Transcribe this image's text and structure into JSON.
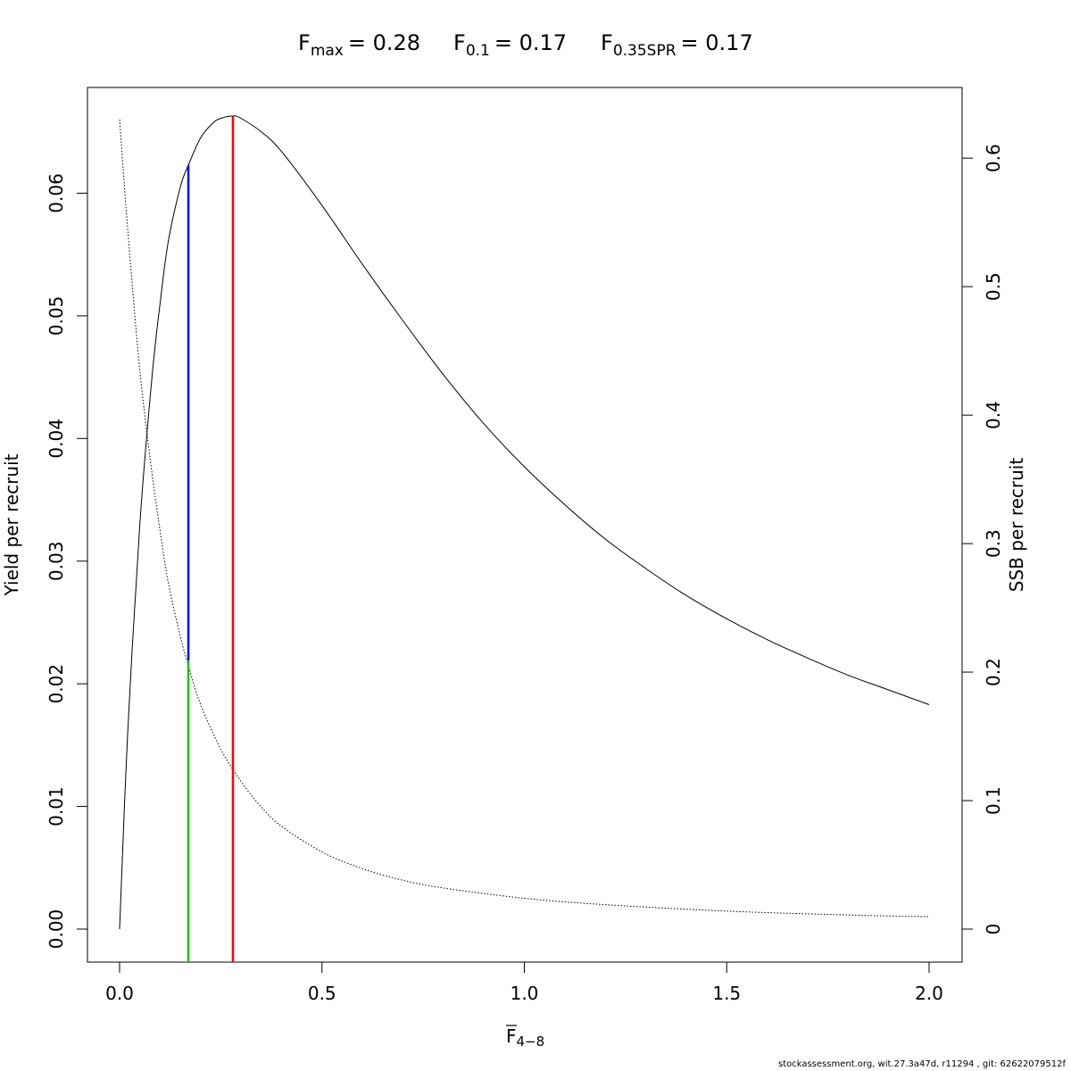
{
  "title": {
    "fmax": {
      "sym": "F",
      "sub": "max",
      "value": "= 0.28"
    },
    "f01": {
      "sym": "F",
      "sub": "0.1",
      "value": "= 0.17"
    },
    "f35": {
      "sym": "F",
      "sub": "0.35SPR",
      "value": "= 0.17"
    }
  },
  "footer": "stockassessment.org, wit.27.3a47d, r11294 , git: 62622079512f",
  "chart_data": {
    "type": "line",
    "xlabel": {
      "sym": "F",
      "sub": "4−8"
    },
    "ylabel_left": "Yield per recruit",
    "ylabel_right": "SSB per recruit",
    "xlim": [
      0,
      2
    ],
    "ylim_left": [
      0,
      0.066
    ],
    "ylim_right": [
      0,
      0.63
    ],
    "xticks": [
      "0.0",
      "0.5",
      "1.0",
      "1.5",
      "2.0"
    ],
    "xtick_values": [
      0,
      0.5,
      1.0,
      1.5,
      2.0
    ],
    "yticks_left": [
      "0.00",
      "0.01",
      "0.02",
      "0.03",
      "0.04",
      "0.05",
      "0.06"
    ],
    "ytick_values_left": [
      0,
      0.01,
      0.02,
      0.03,
      0.04,
      0.05,
      0.06
    ],
    "yticks_right": [
      "0",
      "0.1",
      "0.2",
      "0.3",
      "0.4",
      "0.5",
      "0.6"
    ],
    "ytick_values_right": [
      0,
      0.1,
      0.2,
      0.3,
      0.4,
      0.5,
      0.6
    ],
    "series": [
      {
        "axis": "left",
        "style": "solid",
        "color": "#000000",
        "x": [
          0,
          0.02,
          0.05,
          0.08,
          0.1,
          0.12,
          0.15,
          0.17,
          0.2,
          0.23,
          0.25,
          0.28,
          0.3,
          0.35,
          0.4,
          0.5,
          0.6,
          0.7,
          0.8,
          0.9,
          1.0,
          1.1,
          1.2,
          1.3,
          1.4,
          1.5,
          1.6,
          1.7,
          1.8,
          1.9,
          2.0
        ],
        "values": [
          0,
          0.016,
          0.033,
          0.045,
          0.051,
          0.056,
          0.0605,
          0.0623,
          0.0645,
          0.0657,
          0.0661,
          0.0663,
          0.0661,
          0.065,
          0.0634,
          0.059,
          0.0542,
          0.0496,
          0.0452,
          0.0412,
          0.0377,
          0.0346,
          0.0318,
          0.0294,
          0.0272,
          0.0253,
          0.0236,
          0.0221,
          0.0207,
          0.0195,
          0.0183
        ]
      },
      {
        "axis": "right",
        "style": "dotted",
        "color": "#000000",
        "x": [
          0,
          0.02,
          0.05,
          0.08,
          0.1,
          0.12,
          0.15,
          0.17,
          0.2,
          0.25,
          0.3,
          0.35,
          0.4,
          0.5,
          0.6,
          0.7,
          0.8,
          1.0,
          1.2,
          1.5,
          1.8,
          2.0
        ],
        "values": [
          0.63,
          0.545,
          0.435,
          0.355,
          0.31,
          0.27,
          0.228,
          0.205,
          0.175,
          0.14,
          0.115,
          0.095,
          0.08,
          0.06,
          0.047,
          0.038,
          0.032,
          0.024,
          0.019,
          0.014,
          0.011,
          0.0096
        ]
      }
    ],
    "reference_lines": [
      {
        "name": "Fmax",
        "x": 0.28,
        "axis": "left",
        "from": 0,
        "to": 0.0663,
        "color": "#ff0000"
      },
      {
        "name": "F0.1",
        "x": 0.17,
        "axis": "left",
        "from": 0.0219,
        "to": 0.0623,
        "color": "#0000ff"
      },
      {
        "name": "F0.35SPR",
        "x": 0.17,
        "axis": "left",
        "from": 0,
        "to": 0.0219,
        "color": "#00cc00"
      }
    ]
  }
}
